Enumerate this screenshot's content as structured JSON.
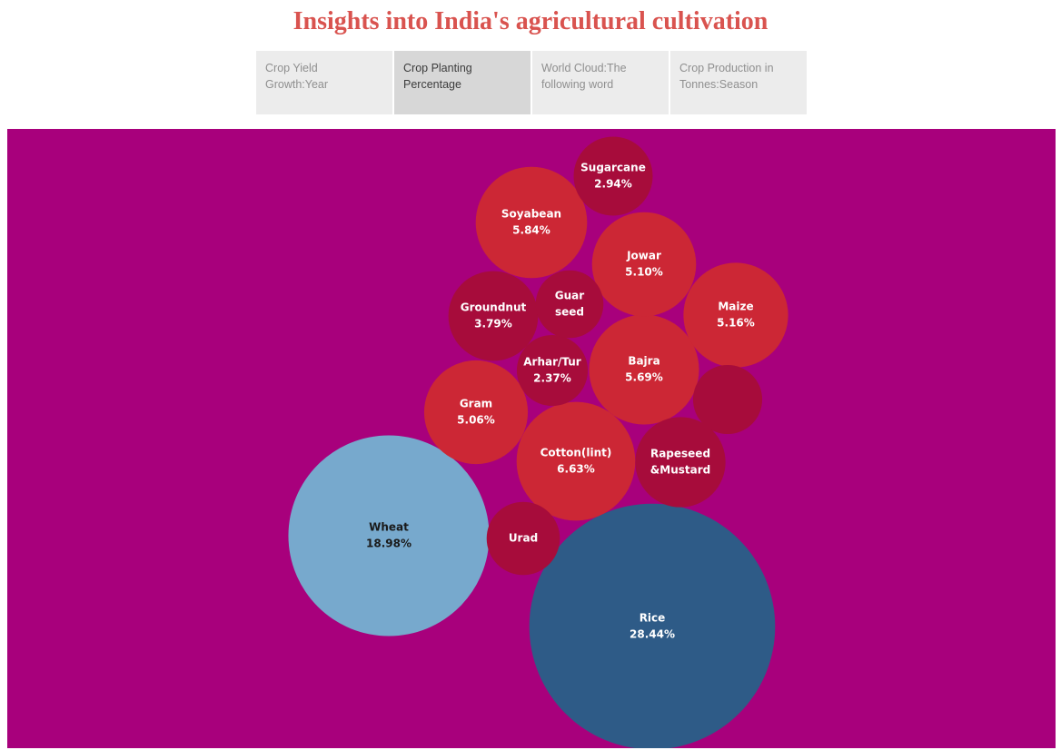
{
  "header": {
    "title": "Insights into India's agricultural cultivation"
  },
  "tabs": [
    {
      "label": "Crop Yield Growth:Year",
      "active": false
    },
    {
      "label": "Crop Planting Percentage",
      "active": true
    },
    {
      "label": "World Cloud:The following word",
      "active": false
    },
    {
      "label": "Crop Production in Tonnes:Season",
      "active": false
    }
  ],
  "colors": {
    "background": "#a8007c",
    "red": "#cc2735",
    "dark_red": "#a70c3b",
    "light_blue": "#77a9cd",
    "dark_blue": "#2e5b87"
  },
  "chart_data": {
    "type": "bubble",
    "title": "",
    "unit": "%",
    "values": [
      {
        "name": "Rice",
        "value": 28.44,
        "color": "dark_blue",
        "show_value": true
      },
      {
        "name": "Wheat",
        "value": 18.98,
        "color": "light_blue",
        "show_value": true
      },
      {
        "name": "Cotton(lint)",
        "value": 6.63,
        "color": "red",
        "show_value": true
      },
      {
        "name": "Soyabean",
        "value": 5.84,
        "color": "red",
        "show_value": true
      },
      {
        "name": "Bajra",
        "value": 5.69,
        "color": "red",
        "show_value": true
      },
      {
        "name": "Maize",
        "value": 5.16,
        "color": "red",
        "show_value": true
      },
      {
        "name": "Jowar",
        "value": 5.1,
        "color": "red",
        "show_value": true
      },
      {
        "name": "Gram",
        "value": 5.06,
        "color": "red",
        "show_value": true
      },
      {
        "name": "Rapeseed &Mustard",
        "value": 3.83,
        "color": "dark_red",
        "show_value": false
      },
      {
        "name": "Groundnut",
        "value": 3.79,
        "color": "dark_red",
        "show_value": true
      },
      {
        "name": "Sugarcane",
        "value": 2.94,
        "color": "dark_red",
        "show_value": true
      },
      {
        "name": "Urad",
        "value": 2.52,
        "color": "dark_red",
        "show_value": false
      },
      {
        "name": "Arhar/Tur",
        "value": 2.37,
        "color": "dark_red",
        "show_value": true
      },
      {
        "name": "",
        "value": 2.25,
        "color": "dark_red",
        "show_value": false
      },
      {
        "name": "Guar seed",
        "value": 2.16,
        "color": "dark_red",
        "show_value": false
      }
    ]
  }
}
